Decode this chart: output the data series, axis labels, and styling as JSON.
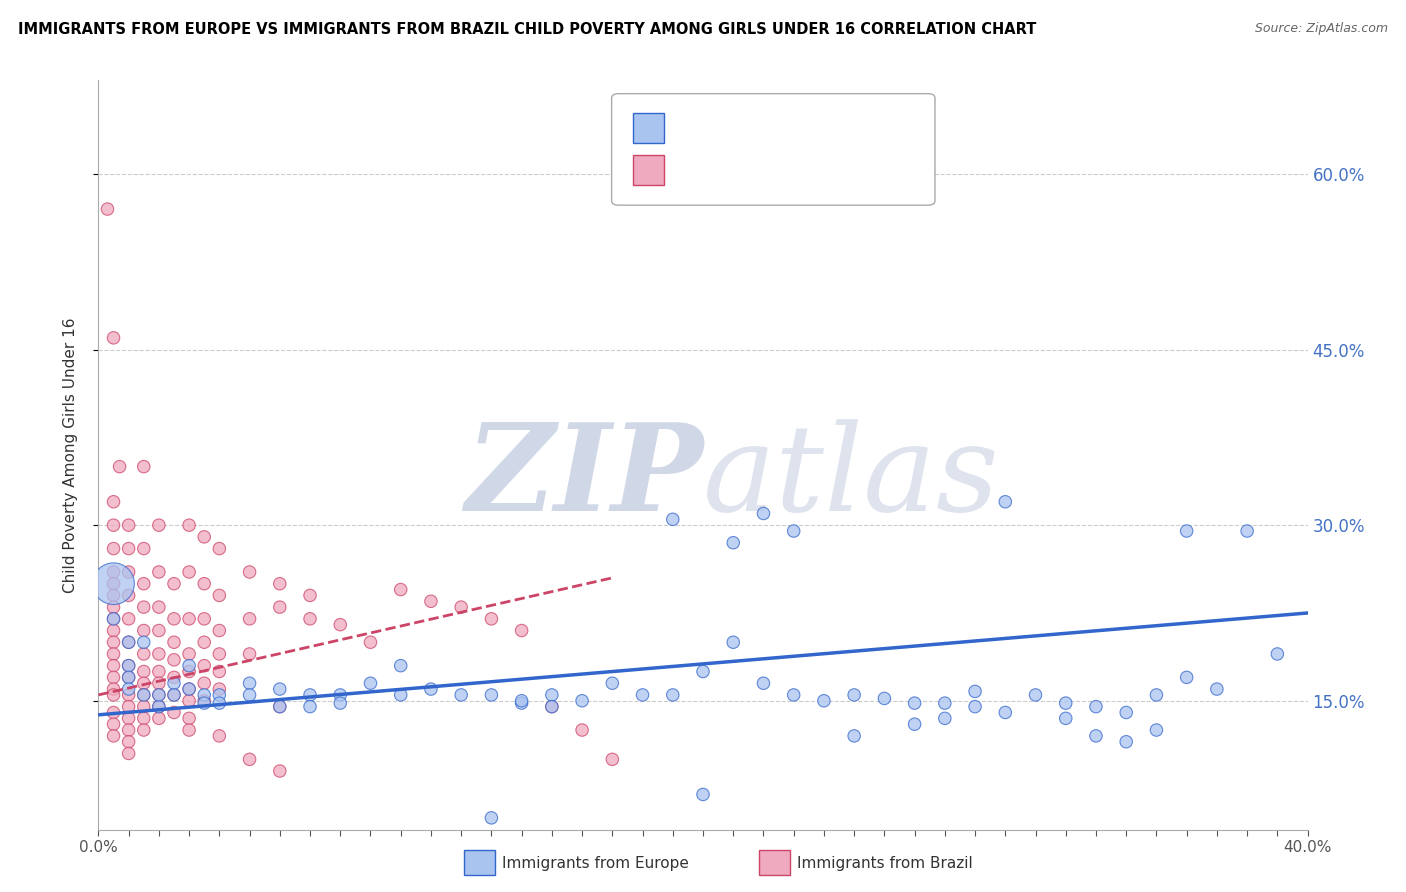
{
  "title": "IMMIGRANTS FROM EUROPE VS IMMIGRANTS FROM BRAZIL CHILD POVERTY AMONG GIRLS UNDER 16 CORRELATION CHART",
  "source": "Source: ZipAtlas.com",
  "ylabel": "Child Poverty Among Girls Under 16",
  "xlim": [
    0.0,
    0.4
  ],
  "ylim": [
    0.04,
    0.68
  ],
  "ytick_labels_right": [
    "15.0%",
    "30.0%",
    "45.0%",
    "60.0%"
  ],
  "ytick_vals_right": [
    0.15,
    0.3,
    0.45,
    0.6
  ],
  "color_europe": "#aac4f0",
  "color_brazil": "#f0aac0",
  "line_color_europe": "#3366cc",
  "line_color_brazil": "#cc4466",
  "watermark_color": "#d0d8e8",
  "europe_points": [
    [
      0.005,
      0.25
    ],
    [
      0.005,
      0.22
    ],
    [
      0.01,
      0.2
    ],
    [
      0.01,
      0.18
    ],
    [
      0.01,
      0.17
    ],
    [
      0.01,
      0.16
    ],
    [
      0.015,
      0.155
    ],
    [
      0.015,
      0.2
    ],
    [
      0.02,
      0.145
    ],
    [
      0.02,
      0.155
    ],
    [
      0.025,
      0.165
    ],
    [
      0.025,
      0.155
    ],
    [
      0.03,
      0.18
    ],
    [
      0.03,
      0.16
    ],
    [
      0.035,
      0.155
    ],
    [
      0.035,
      0.148
    ],
    [
      0.04,
      0.155
    ],
    [
      0.04,
      0.148
    ],
    [
      0.05,
      0.165
    ],
    [
      0.05,
      0.155
    ],
    [
      0.06,
      0.16
    ],
    [
      0.06,
      0.145
    ],
    [
      0.07,
      0.155
    ],
    [
      0.07,
      0.145
    ],
    [
      0.08,
      0.155
    ],
    [
      0.08,
      0.148
    ],
    [
      0.09,
      0.165
    ],
    [
      0.1,
      0.18
    ],
    [
      0.1,
      0.155
    ],
    [
      0.11,
      0.16
    ],
    [
      0.12,
      0.155
    ],
    [
      0.13,
      0.155
    ],
    [
      0.14,
      0.148
    ],
    [
      0.15,
      0.155
    ],
    [
      0.17,
      0.165
    ],
    [
      0.19,
      0.155
    ],
    [
      0.2,
      0.175
    ],
    [
      0.21,
      0.2
    ],
    [
      0.22,
      0.165
    ],
    [
      0.23,
      0.155
    ],
    [
      0.25,
      0.155
    ],
    [
      0.27,
      0.148
    ],
    [
      0.29,
      0.158
    ],
    [
      0.31,
      0.155
    ],
    [
      0.32,
      0.148
    ],
    [
      0.35,
      0.155
    ],
    [
      0.38,
      0.295
    ],
    [
      0.39,
      0.19
    ],
    [
      0.19,
      0.305
    ],
    [
      0.21,
      0.285
    ],
    [
      0.22,
      0.31
    ],
    [
      0.23,
      0.295
    ],
    [
      0.13,
      0.05
    ],
    [
      0.2,
      0.07
    ],
    [
      0.28,
      0.135
    ],
    [
      0.33,
      0.12
    ],
    [
      0.34,
      0.115
    ],
    [
      0.35,
      0.125
    ],
    [
      0.36,
      0.17
    ],
    [
      0.25,
      0.12
    ],
    [
      0.27,
      0.13
    ],
    [
      0.3,
      0.14
    ],
    [
      0.32,
      0.135
    ],
    [
      0.37,
      0.16
    ],
    [
      0.3,
      0.32
    ],
    [
      0.36,
      0.295
    ],
    [
      0.14,
      0.15
    ],
    [
      0.15,
      0.145
    ],
    [
      0.16,
      0.15
    ],
    [
      0.18,
      0.155
    ],
    [
      0.24,
      0.15
    ],
    [
      0.26,
      0.152
    ],
    [
      0.28,
      0.148
    ],
    [
      0.29,
      0.145
    ],
    [
      0.33,
      0.145
    ],
    [
      0.34,
      0.14
    ]
  ],
  "brazil_points": [
    [
      0.003,
      0.57
    ],
    [
      0.005,
      0.46
    ],
    [
      0.007,
      0.35
    ],
    [
      0.005,
      0.32
    ],
    [
      0.005,
      0.3
    ],
    [
      0.005,
      0.28
    ],
    [
      0.005,
      0.26
    ],
    [
      0.005,
      0.25
    ],
    [
      0.005,
      0.24
    ],
    [
      0.005,
      0.23
    ],
    [
      0.005,
      0.22
    ],
    [
      0.005,
      0.21
    ],
    [
      0.005,
      0.2
    ],
    [
      0.005,
      0.19
    ],
    [
      0.005,
      0.18
    ],
    [
      0.005,
      0.17
    ],
    [
      0.005,
      0.16
    ],
    [
      0.005,
      0.155
    ],
    [
      0.005,
      0.14
    ],
    [
      0.005,
      0.13
    ],
    [
      0.005,
      0.12
    ],
    [
      0.01,
      0.3
    ],
    [
      0.01,
      0.28
    ],
    [
      0.01,
      0.26
    ],
    [
      0.01,
      0.24
    ],
    [
      0.01,
      0.22
    ],
    [
      0.01,
      0.2
    ],
    [
      0.01,
      0.18
    ],
    [
      0.01,
      0.17
    ],
    [
      0.01,
      0.155
    ],
    [
      0.01,
      0.145
    ],
    [
      0.01,
      0.135
    ],
    [
      0.01,
      0.125
    ],
    [
      0.01,
      0.115
    ],
    [
      0.01,
      0.105
    ],
    [
      0.015,
      0.35
    ],
    [
      0.015,
      0.28
    ],
    [
      0.015,
      0.25
    ],
    [
      0.015,
      0.23
    ],
    [
      0.015,
      0.21
    ],
    [
      0.015,
      0.19
    ],
    [
      0.015,
      0.175
    ],
    [
      0.015,
      0.165
    ],
    [
      0.015,
      0.155
    ],
    [
      0.015,
      0.145
    ],
    [
      0.015,
      0.135
    ],
    [
      0.015,
      0.125
    ],
    [
      0.02,
      0.3
    ],
    [
      0.02,
      0.26
    ],
    [
      0.02,
      0.23
    ],
    [
      0.02,
      0.21
    ],
    [
      0.02,
      0.19
    ],
    [
      0.02,
      0.175
    ],
    [
      0.02,
      0.165
    ],
    [
      0.02,
      0.155
    ],
    [
      0.02,
      0.145
    ],
    [
      0.02,
      0.135
    ],
    [
      0.025,
      0.25
    ],
    [
      0.025,
      0.22
    ],
    [
      0.025,
      0.2
    ],
    [
      0.025,
      0.185
    ],
    [
      0.025,
      0.17
    ],
    [
      0.025,
      0.155
    ],
    [
      0.025,
      0.14
    ],
    [
      0.03,
      0.3
    ],
    [
      0.03,
      0.26
    ],
    [
      0.03,
      0.22
    ],
    [
      0.03,
      0.19
    ],
    [
      0.03,
      0.175
    ],
    [
      0.03,
      0.16
    ],
    [
      0.03,
      0.15
    ],
    [
      0.03,
      0.135
    ],
    [
      0.03,
      0.125
    ],
    [
      0.035,
      0.29
    ],
    [
      0.035,
      0.25
    ],
    [
      0.035,
      0.22
    ],
    [
      0.035,
      0.2
    ],
    [
      0.035,
      0.18
    ],
    [
      0.035,
      0.165
    ],
    [
      0.035,
      0.15
    ],
    [
      0.04,
      0.28
    ],
    [
      0.04,
      0.24
    ],
    [
      0.04,
      0.21
    ],
    [
      0.04,
      0.19
    ],
    [
      0.04,
      0.175
    ],
    [
      0.04,
      0.16
    ],
    [
      0.04,
      0.12
    ],
    [
      0.05,
      0.26
    ],
    [
      0.05,
      0.22
    ],
    [
      0.05,
      0.19
    ],
    [
      0.05,
      0.1
    ],
    [
      0.06,
      0.25
    ],
    [
      0.06,
      0.23
    ],
    [
      0.06,
      0.145
    ],
    [
      0.06,
      0.09
    ],
    [
      0.07,
      0.24
    ],
    [
      0.07,
      0.22
    ],
    [
      0.08,
      0.215
    ],
    [
      0.09,
      0.2
    ],
    [
      0.1,
      0.245
    ],
    [
      0.11,
      0.235
    ],
    [
      0.12,
      0.23
    ],
    [
      0.13,
      0.22
    ],
    [
      0.14,
      0.21
    ],
    [
      0.15,
      0.145
    ],
    [
      0.16,
      0.125
    ],
    [
      0.17,
      0.1
    ]
  ],
  "europe_line_x": [
    0.0,
    0.4
  ],
  "europe_line_y": [
    0.138,
    0.225
  ],
  "brazil_line_x": [
    0.0,
    0.17
  ],
  "brazil_line_y": [
    0.155,
    0.255
  ]
}
